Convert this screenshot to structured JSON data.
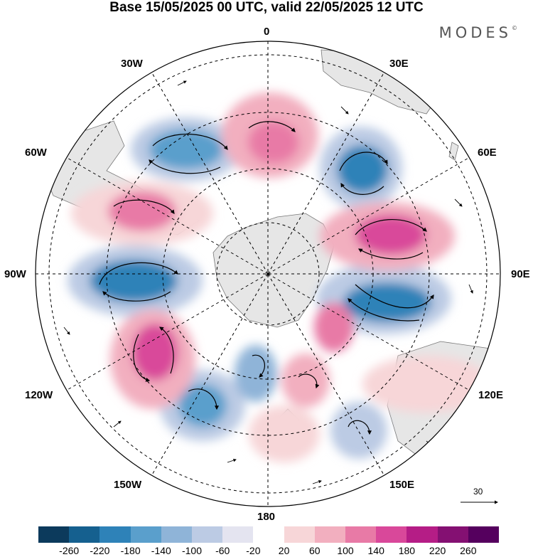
{
  "title": "Base 15/05/2025 00 UTC, valid 22/05/2025 12 UTC",
  "brand": {
    "name": "MODES",
    "mark": "©"
  },
  "map": {
    "projection": "polar-stereographic-south",
    "longitude_labels": {
      "lon_0": "0",
      "lon_30e": "30E",
      "lon_60e": "60E",
      "lon_90e": "90E",
      "lon_120e": "120E",
      "lon_150e": "150E",
      "lon_180": "180",
      "lon_150w": "150W",
      "lon_120w": "120W",
      "lon_90w": "90W",
      "lon_60w": "60W",
      "lon_30w": "30W"
    },
    "reference_vector": "30"
  },
  "colorbar": {
    "colors": [
      "#0c3a5c",
      "#15608f",
      "#2e82b8",
      "#5a9fcc",
      "#8fb4d8",
      "#bccbe4",
      "#e4e4f0",
      "#ffffff",
      "#f7d6d8",
      "#f2afbf",
      "#e87aa6",
      "#d9489a",
      "#b51d86",
      "#841072",
      "#55005e"
    ],
    "tick_labels": [
      "-260",
      "-220",
      "-180",
      "-140",
      "-100",
      "-60",
      "-20",
      "20",
      "60",
      "100",
      "140",
      "180",
      "220",
      "260"
    ]
  }
}
